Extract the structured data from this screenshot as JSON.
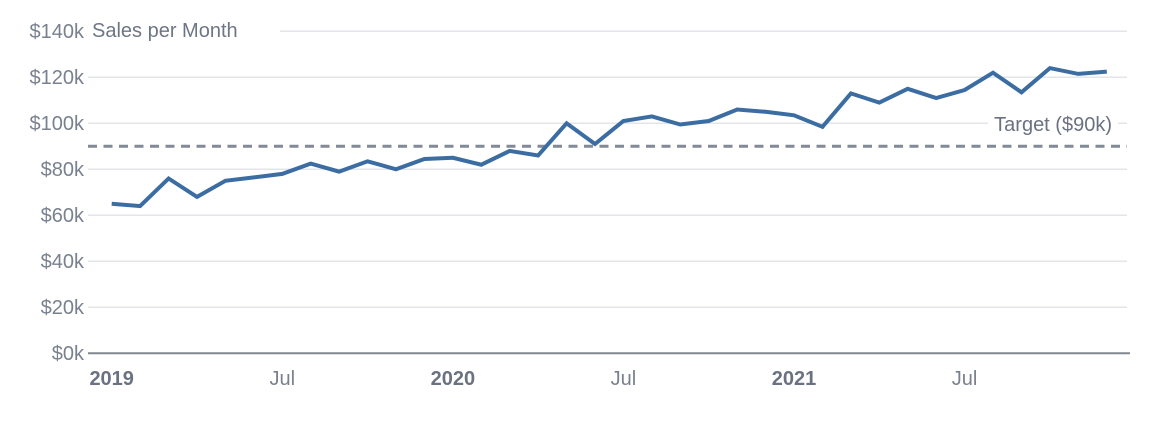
{
  "chart": {
    "title": "Sales per Month",
    "target_label": "Target ($90k)",
    "colors": {
      "series_line": "#3b6ca2",
      "target_line": "#828a97",
      "gridline": "#e3e5ea",
      "axis_line": "#81878f",
      "tick_text": "#79818f",
      "strong_tick_text": "#6a7282",
      "title_text": "#6e7685",
      "background": "#ffffff"
    }
  },
  "chart_data": {
    "type": "line",
    "title": "Sales per Month",
    "x": [
      "Jan 2019",
      "Feb 2019",
      "Mar 2019",
      "Apr 2019",
      "May 2019",
      "Jun 2019",
      "Jul 2019",
      "Aug 2019",
      "Sep 2019",
      "Oct 2019",
      "Nov 2019",
      "Dec 2019",
      "Jan 2020",
      "Feb 2020",
      "Mar 2020",
      "Apr 2020",
      "May 2020",
      "Jun 2020",
      "Jul 2020",
      "Aug 2020",
      "Sep 2020",
      "Oct 2020",
      "Nov 2020",
      "Dec 2020",
      "Jan 2021",
      "Feb 2021",
      "Mar 2021",
      "Apr 2021",
      "May 2021",
      "Jun 2021",
      "Jul 2021",
      "Aug 2021",
      "Sep 2021",
      "Oct 2021",
      "Nov 2021",
      "Dec 2021"
    ],
    "series": [
      {
        "name": "Sales per Month",
        "values": [
          65,
          64,
          76,
          68,
          75,
          76.5,
          78,
          82.5,
          79,
          83.5,
          80,
          84.5,
          85,
          82,
          88,
          86,
          100,
          91,
          101,
          103,
          99.5,
          101,
          106,
          105,
          103.5,
          98.5,
          113,
          109,
          115,
          111,
          114.5,
          122,
          113.5,
          124,
          121.5,
          122.5
        ]
      }
    ],
    "y_unit": "thousand dollars",
    "ylim": [
      0,
      140
    ],
    "y_ticks": [
      {
        "label": "$0k",
        "value": 0
      },
      {
        "label": "$20k",
        "value": 20
      },
      {
        "label": "$40k",
        "value": 40
      },
      {
        "label": "$60k",
        "value": 60
      },
      {
        "label": "$80k",
        "value": 80
      },
      {
        "label": "$100k",
        "value": 100
      },
      {
        "label": "$120k",
        "value": 120
      },
      {
        "label": "$140k",
        "value": 140
      }
    ],
    "x_ticks": [
      {
        "label": "2019",
        "month_index": 0,
        "bold": true
      },
      {
        "label": "Jul",
        "month_index": 6,
        "bold": false
      },
      {
        "label": "2020",
        "month_index": 12,
        "bold": true
      },
      {
        "label": "Jul",
        "month_index": 18,
        "bold": false
      },
      {
        "label": "2021",
        "month_index": 24,
        "bold": true
      },
      {
        "label": "Jul",
        "month_index": 30,
        "bold": false
      }
    ],
    "target": {
      "label": "Target ($90k)",
      "value": 90,
      "style": "dashed"
    },
    "grid": "horizontal",
    "legend": "none"
  }
}
